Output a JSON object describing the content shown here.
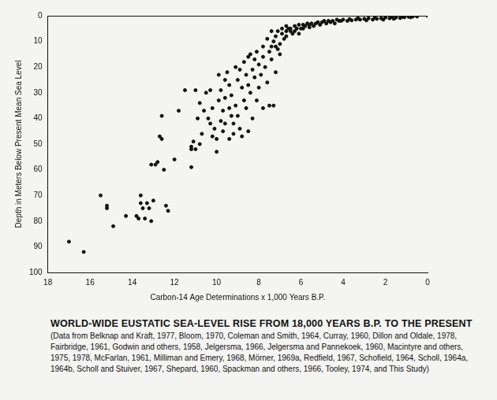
{
  "chart_data": {
    "type": "scatter",
    "title": "WORLD-WIDE EUSTATIC SEA-LEVEL RISE FROM 18,000 YEARS B.P. TO THE PRESENT",
    "subtitle": "(Data from Belknap and Kraft, 1977, Bloom, 1970, Coleman and Smith, 1964, Curray, 1960, Dillon and Oldale, 1978, Fairbridge, 1961, Godwin and others, 1958, Jelgersma, 1966, Jelgersma and Pannekoek, 1960, Macintyre and others, 1975, 1978, McFarlan, 1961, Milliman and Emery, 1968, Mörner, 1969a, Redfield, 1967, Schofield, 1964, Scholl, 1964a, 1964b, Scholl and Stuiver, 1967, Shepard, 1960, Spackman and others, 1966, Tooley, 1974, and This Study)",
    "x_label": "Carbon-14 Age Determinations x 1,000 Years B.P.",
    "y_label": "Depth in Meters Below Present Mean Sea Level",
    "x": [
      17.0,
      16.3,
      15.5,
      15.2,
      15.2,
      14.9,
      14.3,
      13.8,
      13.7,
      13.6,
      13.6,
      13.5,
      13.4,
      13.3,
      13.2,
      13.1,
      13.1,
      13.0,
      12.9,
      12.8,
      12.7,
      12.6,
      12.6,
      12.5,
      12.4,
      12.3,
      12.0,
      11.8,
      11.5,
      11.2,
      11.2,
      11.2,
      11.1,
      11.0,
      11.0,
      10.9,
      10.8,
      10.8,
      10.7,
      10.6,
      10.5,
      10.4,
      10.3,
      10.3,
      10.2,
      10.2,
      10.1,
      10.0,
      10.0,
      9.9,
      9.9,
      9.8,
      9.8,
      9.7,
      9.7,
      9.6,
      9.6,
      9.6,
      9.5,
      9.4,
      9.4,
      9.4,
      9.3,
      9.3,
      9.2,
      9.2,
      9.1,
      9.1,
      9.0,
      9.0,
      8.9,
      8.9,
      8.8,
      8.8,
      8.7,
      8.7,
      8.6,
      8.6,
      8.5,
      8.5,
      8.5,
      8.4,
      8.4,
      8.3,
      8.3,
      8.2,
      8.2,
      8.1,
      8.1,
      8.0,
      8.0,
      7.9,
      7.8,
      7.8,
      7.8,
      7.7,
      7.6,
      7.6,
      7.5,
      7.5,
      7.4,
      7.4,
      7.4,
      7.3,
      7.3,
      7.2,
      7.2,
      7.2,
      7.1,
      7.1,
      7.0,
      7.0,
      6.9,
      6.9,
      6.8,
      6.7,
      6.7,
      6.7,
      6.6,
      6.5,
      6.5,
      6.4,
      6.3,
      6.3,
      6.2,
      6.1,
      6.1,
      6.0,
      5.9,
      5.9,
      5.8,
      5.7,
      5.6,
      5.6,
      5.5,
      5.4,
      5.3,
      5.2,
      5.1,
      5.0,
      4.9,
      4.8,
      4.7,
      4.6,
      4.5,
      4.4,
      4.3,
      4.2,
      4.1,
      4.0,
      3.8,
      3.7,
      3.6,
      3.4,
      3.3,
      3.2,
      3.0,
      2.9,
      2.8,
      2.6,
      2.5,
      2.4,
      2.2,
      2.1,
      2.0,
      1.8,
      1.7,
      1.6,
      1.5,
      1.3,
      1.2,
      1.1,
      0.9,
      0.8,
      0.7,
      0.5,
      0
    ],
    "values": [
      88,
      92,
      70,
      74,
      75,
      82,
      78,
      78,
      79,
      70,
      73,
      75,
      79,
      73,
      75,
      80,
      58,
      72,
      58,
      57,
      47,
      48,
      39,
      60,
      74,
      76,
      56,
      37,
      29,
      51,
      52,
      59,
      49,
      29,
      52,
      40,
      50,
      34,
      46,
      37,
      30,
      40,
      29,
      42,
      36,
      47,
      44,
      53,
      48,
      23,
      33,
      41,
      29,
      37,
      45,
      25,
      32,
      42,
      22,
      36,
      48,
      27,
      39,
      31,
      46,
      42,
      20,
      35,
      25,
      39,
      44,
      21,
      28,
      47,
      33,
      18,
      23,
      36,
      45,
      16,
      27,
      15,
      30,
      21,
      40,
      17,
      24,
      33,
      14,
      19,
      28,
      23,
      12,
      16,
      36,
      20,
      9,
      26,
      35,
      14,
      12,
      6,
      17,
      35,
      10,
      12,
      22,
      8,
      6,
      13,
      15,
      11,
      5,
      7,
      9,
      6,
      4,
      8,
      5,
      6,
      5,
      7,
      4,
      6,
      5,
      3.5,
      7,
      5,
      5,
      3.5,
      4,
      3,
      4.5,
      3.5,
      3,
      4,
      3,
      2.5,
      3.5,
      2.5,
      2,
      3,
      2,
      2.5,
      2,
      3,
      1.5,
      2,
      2,
      1.5,
      2,
      1.3,
      1.8,
      1.5,
      1,
      1.5,
      1.2,
      1.8,
      1,
      1.5,
      0.8,
      1.2,
      1,
      1.5,
      0.7,
      1,
      0.5,
      1.2,
      0.7,
      0.9,
      0.4,
      0.6,
      0.4,
      0.6,
      0.3,
      0.3,
      0
    ],
    "color": "#111111",
    "marker": "circle",
    "xlim": [
      18,
      0
    ],
    "xticks": [
      18,
      16,
      14,
      12,
      10,
      8,
      6,
      4,
      2,
      0
    ],
    "ylim": [
      0,
      100
    ],
    "yticks": [
      0,
      10,
      20,
      30,
      40,
      50,
      60,
      70,
      80,
      90,
      100
    ],
    "grid": false
  }
}
